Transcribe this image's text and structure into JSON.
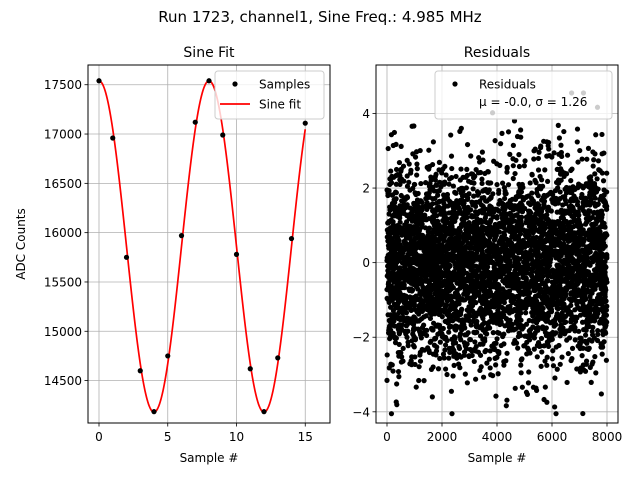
{
  "figure": {
    "suptitle": "Run 1723, channel1, Sine Freq.: 4.985 MHz"
  },
  "chart_data": [
    {
      "type": "line",
      "title": "Sine Fit",
      "xlabel": "Sample #",
      "ylabel": "ADC Counts",
      "xlim": [
        -0.8,
        16.8
      ],
      "ylim": [
        14070,
        17700
      ],
      "xticks": [
        0,
        5,
        10,
        15
      ],
      "yticks": [
        14500,
        15000,
        15500,
        16000,
        16500,
        17000,
        17500
      ],
      "grid": true,
      "legend": {
        "placement": "upper-right",
        "entries": [
          "Samples",
          "Sine fit"
        ]
      },
      "samples": {
        "name": "Samples",
        "color": "#000000",
        "x": [
          0,
          1,
          2,
          3,
          4,
          5,
          6,
          7,
          8,
          9,
          10,
          11,
          12,
          13,
          14,
          15
        ],
        "y": [
          17540,
          16960,
          15750,
          14600,
          14185,
          14750,
          15970,
          17120,
          17540,
          16990,
          15780,
          14620,
          14185,
          14730,
          15940,
          17110
        ]
      },
      "fit": {
        "name": "Sine fit",
        "color": "#ff0000",
        "model": "y = 15860 + 1680*cos(2*pi*x/8)",
        "offset": 15860,
        "amplitude": 1680,
        "period": 8,
        "x_range": [
          0,
          15
        ]
      }
    },
    {
      "type": "scatter",
      "title": "Residuals",
      "xlabel": "Sample #",
      "ylabel": "",
      "xlim": [
        -400,
        8400
      ],
      "ylim": [
        -4.3,
        5.3
      ],
      "xticks": [
        0,
        2000,
        4000,
        6000,
        8000
      ],
      "yticks": [
        -4,
        -2,
        0,
        2,
        4
      ],
      "grid": true,
      "legend": {
        "placement": "upper-right",
        "entries": [
          "Residuals",
          "μ = -0.0, σ = 1.26"
        ]
      },
      "series": [
        {
          "name": "Residuals",
          "color": "#000000",
          "count": 8000,
          "mean": -0.0,
          "std": 1.26
        }
      ]
    }
  ]
}
